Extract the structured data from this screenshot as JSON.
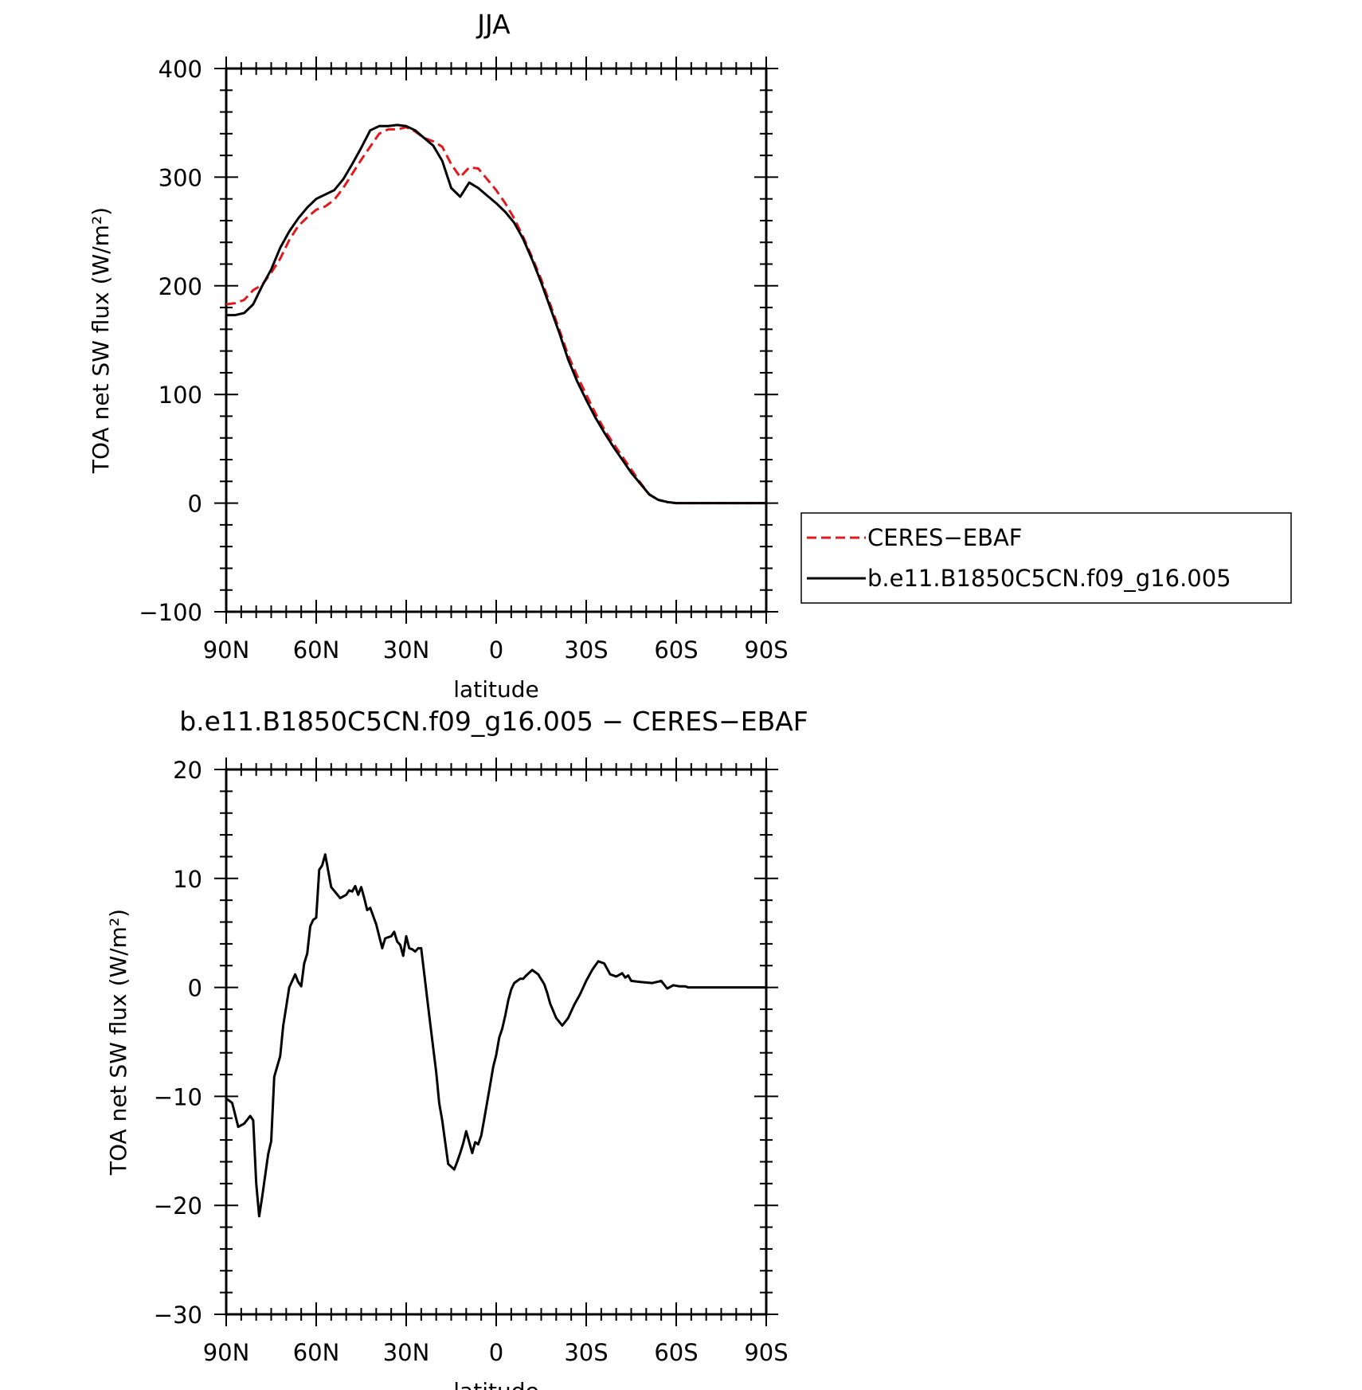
{
  "chart_data": [
    {
      "type": "line",
      "title": "JJA",
      "xlabel": "latitude",
      "ylabel": "TOA net SW flux (W/m²)",
      "ylim": [
        -100,
        400
      ],
      "xlim": [
        90,
        -90
      ],
      "x_ticks": [
        90,
        60,
        30,
        0,
        -30,
        -60,
        -90
      ],
      "x_tick_labels": [
        "90N",
        "60N",
        "30N",
        "0",
        "30S",
        "60S",
        "90S"
      ],
      "y_ticks": [
        -100,
        0,
        100,
        200,
        300,
        400
      ],
      "y_tick_labels": [
        "−100",
        "0",
        "100",
        "200",
        "300",
        "400"
      ],
      "grid": false,
      "legend_placement": "right",
      "series": [
        {
          "name": "CERES−EBAF",
          "color": "#e31a1c",
          "dash": "dashed",
          "x": [
            90,
            87,
            84,
            81,
            78,
            75,
            72,
            69,
            66,
            63,
            60,
            57,
            54,
            51,
            48,
            45,
            42,
            39,
            36,
            33,
            30,
            27,
            24,
            21,
            18,
            15,
            12,
            9,
            6,
            3,
            0,
            -3,
            -6,
            -9,
            -12,
            -15,
            -18,
            -21,
            -24,
            -27,
            -30,
            -33,
            -36,
            -39,
            -42,
            -45,
            -48,
            -51,
            -54,
            -57,
            -60,
            -63,
            -66,
            -69,
            -72,
            -75,
            -78,
            -81,
            -84,
            -87,
            -90
          ],
          "y": [
            183,
            184,
            187,
            196,
            201,
            212,
            225,
            242,
            255,
            263,
            270,
            273,
            279,
            290,
            303,
            316,
            328,
            340,
            344,
            344,
            346,
            342,
            336,
            333,
            328,
            312,
            300,
            309,
            308,
            298,
            288,
            276,
            262,
            245,
            226,
            206,
            183,
            160,
            136,
            117,
            100,
            83,
            68,
            55,
            43,
            31,
            19,
            8,
            3,
            1,
            0,
            0,
            0,
            0,
            0,
            0,
            0,
            0,
            0,
            0,
            0
          ]
        },
        {
          "name": "b.e11.B1850C5CN.f09_g16.005",
          "color": "#000000",
          "dash": "solid",
          "x": [
            90,
            87,
            84,
            81,
            78,
            75,
            72,
            69,
            66,
            63,
            60,
            57,
            54,
            51,
            48,
            45,
            42,
            39,
            36,
            33,
            30,
            27,
            24,
            21,
            18,
            15,
            12,
            9,
            6,
            3,
            0,
            -3,
            -6,
            -9,
            -12,
            -15,
            -18,
            -21,
            -24,
            -27,
            -30,
            -33,
            -36,
            -39,
            -42,
            -45,
            -48,
            -51,
            -54,
            -57,
            -60,
            -63,
            -66,
            -69,
            -72,
            -75,
            -78,
            -81,
            -84,
            -87,
            -90
          ],
          "y": [
            173,
            173,
            175,
            183,
            200,
            215,
            235,
            250,
            262,
            272,
            280,
            284,
            288,
            298,
            312,
            327,
            343,
            347,
            347,
            348,
            347,
            343,
            336,
            329,
            315,
            290,
            282,
            295,
            290,
            283,
            276,
            268,
            258,
            243,
            224,
            203,
            180,
            157,
            132,
            112,
            95,
            79,
            65,
            52,
            40,
            28,
            18,
            8,
            3,
            1,
            0,
            0,
            0,
            0,
            0,
            0,
            0,
            0,
            0,
            0,
            0
          ]
        }
      ]
    },
    {
      "type": "line",
      "title": "b.e11.B1850C5CN.f09_g16.005 − CERES−EBAF",
      "xlabel": "latitude",
      "ylabel": "TOA net SW flux (W/m²)",
      "ylim": [
        -30,
        20
      ],
      "xlim": [
        90,
        -90
      ],
      "x_ticks": [
        90,
        60,
        30,
        0,
        -30,
        -60,
        -90
      ],
      "x_tick_labels": [
        "90N",
        "60N",
        "30N",
        "0",
        "30S",
        "60S",
        "90S"
      ],
      "y_ticks": [
        -30,
        -20,
        -10,
        0,
        10,
        20
      ],
      "y_tick_labels": [
        "−30",
        "−20",
        "−10",
        "0",
        "10",
        "20"
      ],
      "grid": false,
      "series": [
        {
          "color": "#000000",
          "x": [
            90,
            88,
            86,
            84,
            82,
            81,
            80,
            79,
            78,
            76,
            75,
            74,
            72,
            71,
            70,
            69,
            67,
            66,
            65,
            64,
            63,
            62,
            61,
            60,
            59,
            58,
            57,
            55,
            52,
            50,
            49,
            48,
            47,
            46,
            45,
            44,
            43,
            42,
            40,
            38,
            37,
            35,
            34,
            33,
            32,
            31,
            30,
            29,
            28,
            27,
            26,
            25,
            22,
            20,
            19,
            18,
            16,
            14,
            13,
            12,
            11,
            10,
            8,
            7,
            6,
            5,
            4,
            3,
            2,
            1,
            0,
            -1,
            -2,
            -3,
            -4,
            -5,
            -6,
            -7,
            -8,
            -9,
            -10,
            -12,
            -14,
            -16,
            -17,
            -18,
            -20,
            -22,
            -24,
            -26,
            -28,
            -30,
            -32,
            -34,
            -36,
            -38,
            -40,
            -42,
            -43,
            -44,
            -45,
            -48,
            -52,
            -55,
            -57,
            -59,
            -61,
            -62,
            -63,
            -64,
            -65,
            -66,
            -68,
            -70,
            -74,
            -76,
            -77,
            -78,
            -80,
            -84,
            -90
          ],
          "y": [
            -10.2,
            -10.6,
            -12.8,
            -12.5,
            -11.8,
            -12.2,
            -18,
            -21,
            -19.2,
            -15.3,
            -14.1,
            -8.2,
            -6.3,
            -3.5,
            -1.8,
            0,
            1.2,
            0.5,
            0.1,
            2.2,
            3.1,
            5.6,
            6.2,
            6.4,
            10.8,
            11.2,
            12.2,
            9.2,
            8.2,
            8.5,
            8.9,
            8.8,
            9.3,
            8.5,
            9.2,
            8.2,
            7.1,
            7.3,
            5.8,
            3.6,
            4.5,
            4.7,
            5.1,
            4.2,
            3.9,
            2.9,
            4.7,
            3.6,
            3.5,
            3.3,
            3.6,
            3.6,
            -3.3,
            -7.8,
            -10.6,
            -12.2,
            -16.2,
            -16.7,
            -16,
            -15.2,
            -14.3,
            -13.2,
            -15.2,
            -14.2,
            -14.4,
            -13.6,
            -12.1,
            -10.5,
            -8.9,
            -7.3,
            -6.2,
            -4.6,
            -3.8,
            -2.6,
            -1.2,
            -0.2,
            0.4,
            0.6,
            0.8,
            0.8,
            1.1,
            1.6,
            1.2,
            0.3,
            -0.5,
            -1.5,
            -2.8,
            -3.5,
            -2.8,
            -1.6,
            -0.6,
            0.6,
            1.6,
            2.4,
            2.2,
            1.2,
            1.0,
            1.3,
            0.9,
            1.1,
            0.6,
            0.5,
            0.4,
            0.6,
            -0.1,
            0.2,
            0.1,
            0.1,
            0.1,
            0,
            0,
            0,
            0,
            0,
            0,
            0,
            0,
            0,
            0,
            0,
            0
          ]
        }
      ]
    }
  ],
  "legend": {
    "entries": [
      {
        "label": "CERES−EBAF",
        "color": "#e31a1c",
        "dash": "dashed"
      },
      {
        "label": "b.e11.B1850C5CN.f09_g16.005",
        "color": "#000000",
        "dash": "solid"
      }
    ]
  }
}
